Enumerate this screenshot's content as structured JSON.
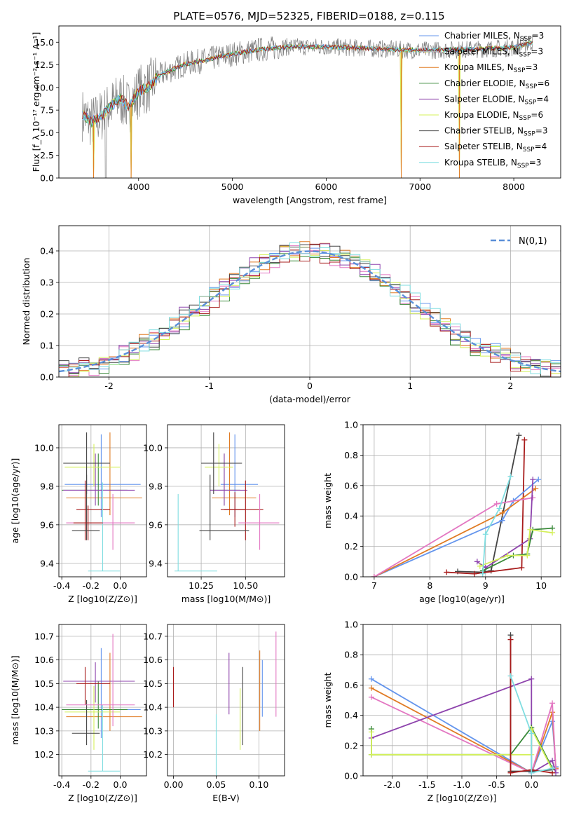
{
  "figure_title": "PLATE=0576, MJD=52325, FIBERID=0188, z=0.115",
  "models": [
    {
      "name": "Chabrier MILES",
      "nssp": "3",
      "color": "#6495ed"
    },
    {
      "name": "Salpeter MILES",
      "nssp": "3",
      "color": "#e8e8e8"
    },
    {
      "name": "Kroupa MILES",
      "nssp": "3",
      "color": "#e07b24"
    },
    {
      "name": "Chabrier ELODIE",
      "nssp": "6",
      "color": "#3a8a3a"
    },
    {
      "name": "Salpeter ELODIE",
      "nssp": "4",
      "color": "#8e44ad"
    },
    {
      "name": "Kroupa ELODIE",
      "nssp": "6",
      "color": "#d4f05a"
    },
    {
      "name": "Chabrier STELIB",
      "nssp": "3",
      "color": "#444444"
    },
    {
      "name": "Salpeter STELIB",
      "nssp": "4",
      "color": "#a81c1c"
    },
    {
      "name": "Kroupa STELIB",
      "nssp": "3",
      "color": "#7fdde0"
    }
  ],
  "colors": {
    "pink": "#e377c2",
    "data_gray": "#808080",
    "gaussian": "#5a8fd8",
    "grid": "#b0b0b0"
  },
  "chart_data": [
    {
      "id": "spectrum",
      "type": "line",
      "xlabel": "wavelength [Angstrom, rest frame]",
      "ylabel": "Flux [f_λ 10⁻¹⁷ erg cm⁻² s⁻¹ A⁻¹]",
      "xlim": [
        3150,
        8500
      ],
      "ylim": [
        0,
        16.8
      ],
      "xticks": [
        4000,
        5000,
        6000,
        7000,
        8000
      ],
      "yticks": [
        0.0,
        2.5,
        5.0,
        7.5,
        10.0,
        12.5,
        15.0
      ],
      "grid": false,
      "legend": "right",
      "x": [
        3400,
        3500,
        3600,
        3700,
        3800,
        3900,
        4000,
        4100,
        4200,
        4300,
        4500,
        4700,
        5000,
        5300,
        5600,
        6000,
        6500,
        7000,
        7500,
        8000,
        8200
      ],
      "model_y": [
        7.0,
        6.2,
        6.8,
        7.9,
        8.8,
        7.8,
        9.6,
        10.0,
        11.2,
        11.7,
        12.6,
        13.0,
        13.7,
        14.2,
        14.5,
        14.5,
        14.3,
        14.1,
        14.2,
        14.4,
        15.0
      ],
      "dropouts": [
        3520,
        3920,
        6800,
        7420
      ]
    },
    {
      "id": "residuals",
      "type": "area",
      "xlabel": "(data-model)/error",
      "ylabel": "Normed distribution",
      "xlim": [
        -2.5,
        2.5
      ],
      "ylim": [
        0,
        0.48
      ],
      "xticks": [
        -2,
        -1,
        0,
        1,
        2
      ],
      "yticks": [
        0.0,
        0.1,
        0.2,
        0.3,
        0.4
      ],
      "grid": true,
      "legend": "top-right",
      "legend_label": "N(0,1)",
      "bin_edges": [
        -2.5,
        -2.4,
        -2.3,
        -2.2,
        -2.1,
        -2.0,
        -1.9,
        -1.8,
        -1.7,
        -1.6,
        -1.5,
        -1.4,
        -1.3,
        -1.2,
        -1.1,
        -1.0,
        -0.9,
        -0.8,
        -0.7,
        -0.6,
        -0.5,
        -0.4,
        -0.3,
        -0.2,
        -0.1,
        0.0,
        0.1,
        0.2,
        0.3,
        0.4,
        0.5,
        0.6,
        0.7,
        0.8,
        0.9,
        1.0,
        1.1,
        1.2,
        1.3,
        1.4,
        1.5,
        1.6,
        1.7,
        1.8,
        1.9,
        2.0,
        2.1,
        2.2,
        2.3,
        2.4,
        2.5
      ],
      "hist_offsets": [
        0.02,
        -0.015,
        0.01,
        -0.025,
        0.03,
        0.0,
        0.015,
        -0.02,
        0.025
      ],
      "gaussian": {
        "mean": 0.0,
        "sigma": 1.0
      }
    },
    {
      "id": "age_vs_Z",
      "type": "scatter",
      "xlabel": "Z [log10(Z/Z⊙)]",
      "ylabel": "age [log10(age/yr)]",
      "xlim": [
        -0.42,
        0.18
      ],
      "ylim": [
        9.33,
        10.12
      ],
      "xticks": [
        -0.4,
        -0.2,
        0.0
      ],
      "yticks": [
        9.4,
        9.6,
        9.8,
        10.0
      ],
      "grid": true,
      "points": [
        {
          "model": 0,
          "x": -0.13,
          "y": 9.81,
          "xerr": [
            0.25,
            0.27
          ],
          "yerr": [
            0.17,
            0.26
          ]
        },
        {
          "model": 2,
          "x": -0.07,
          "y": 9.74,
          "xerr": [
            0.3,
            0.22
          ],
          "yerr": [
            0.09,
            0.34
          ]
        },
        {
          "model": 3,
          "x": -0.15,
          "y": 9.78,
          "xerr": [
            0.25,
            0.2
          ],
          "yerr": [
            0.08,
            0.19
          ]
        },
        {
          "model": 4,
          "x": -0.17,
          "y": 9.78,
          "xerr": [
            0.22,
            0.27
          ],
          "yerr": [
            0.08,
            0.19
          ]
        },
        {
          "model": 5,
          "x": -0.18,
          "y": 9.9,
          "xerr": [
            0.2,
            0.18
          ],
          "yerr": [
            0.1,
            0.12
          ]
        },
        {
          "model": 6,
          "x": -0.23,
          "y": 9.92,
          "xerr": [
            0.16,
            0.16
          ],
          "yerr": [
            0.16,
            0.16
          ]
        },
        {
          "model": 7,
          "x": -0.24,
          "y": 9.68,
          "xerr": [
            0.06,
            0.17
          ],
          "yerr": [
            0.16,
            0.15
          ]
        },
        {
          "model": 6,
          "x": -0.23,
          "y": 9.57,
          "xerr": [
            0.1,
            0.09
          ],
          "yerr": [
            0.05,
            0.29
          ]
        },
        {
          "model": 8,
          "x": -0.12,
          "y": 9.36,
          "xerr": [
            0.1,
            0.12
          ],
          "yerr": [
            0.0,
            0.46
          ]
        },
        {
          "model": 9,
          "x": -0.05,
          "y": 9.61,
          "xerr": [
            0.32,
            0.15
          ],
          "yerr": [
            0.14,
            0.15
          ]
        },
        {
          "model": 7,
          "x": -0.22,
          "y": 9.61,
          "xerr": [
            0.1,
            0.1
          ],
          "yerr": [
            0.09,
            0.09
          ]
        }
      ]
    },
    {
      "id": "age_vs_mass",
      "type": "scatter",
      "xlabel": "mass [log10(M/M⊙)]",
      "ylabel": "",
      "xlim": [
        10.06,
        10.72
      ],
      "ylim": [
        9.33,
        10.12
      ],
      "xticks": [
        10.25,
        10.5
      ],
      "yticks": [
        9.4,
        9.6,
        9.8,
        10.0
      ],
      "grid": true,
      "points": [
        {
          "model": 0,
          "x": 10.44,
          "y": 9.81,
          "xerr": [
            0.08,
            0.13
          ],
          "yerr": [
            0.17,
            0.26
          ]
        },
        {
          "model": 2,
          "x": 10.41,
          "y": 9.74,
          "xerr": [
            0.1,
            0.15
          ],
          "yerr": [
            0.09,
            0.34
          ]
        },
        {
          "model": 3,
          "x": 10.38,
          "y": 9.78,
          "xerr": [
            0.08,
            0.09
          ],
          "yerr": [
            0.08,
            0.19
          ]
        },
        {
          "model": 4,
          "x": 10.38,
          "y": 9.78,
          "xerr": [
            0.08,
            0.13
          ],
          "yerr": [
            0.08,
            0.19
          ]
        },
        {
          "model": 5,
          "x": 10.35,
          "y": 9.9,
          "xerr": [
            0.08,
            0.08
          ],
          "yerr": [
            0.1,
            0.12
          ]
        },
        {
          "model": 6,
          "x": 10.32,
          "y": 9.92,
          "xerr": [
            0.07,
            0.16
          ],
          "yerr": [
            0.16,
            0.16
          ]
        },
        {
          "model": 7,
          "x": 10.5,
          "y": 9.68,
          "xerr": [
            0.12,
            0.1
          ],
          "yerr": [
            0.16,
            0.15
          ]
        },
        {
          "model": 6,
          "x": 10.3,
          "y": 9.57,
          "xerr": [
            0.06,
            0.22
          ],
          "yerr": [
            0.05,
            0.29
          ]
        },
        {
          "model": 8,
          "x": 10.12,
          "y": 9.36,
          "xerr": [
            0.02,
            0.22
          ],
          "yerr": [
            0.0,
            0.4
          ]
        },
        {
          "model": 9,
          "x": 10.58,
          "y": 9.61,
          "xerr": [
            0.12,
            0.11
          ],
          "yerr": [
            0.14,
            0.15
          ]
        },
        {
          "model": 7,
          "x": 10.44,
          "y": 9.68,
          "xerr": [
            0.08,
            0.06
          ],
          "yerr": [
            0.09,
            0.09
          ]
        }
      ]
    },
    {
      "id": "weight_vs_age",
      "type": "line",
      "xlabel": "age [log10(age/yr)]",
      "ylabel": "mass weight",
      "xlim": [
        6.8,
        10.35
      ],
      "ylim": [
        0,
        1.0
      ],
      "xticks": [
        7,
        8,
        9,
        10
      ],
      "yticks": [
        0.0,
        0.2,
        0.4,
        0.6,
        0.8,
        1.0
      ],
      "grid": true,
      "series": [
        {
          "model": 6,
          "x": [
            8.5,
            8.95,
            9.1,
            9.6
          ],
          "y": [
            0.035,
            0.03,
            0.04,
            0.93
          ]
        },
        {
          "model": 7,
          "x": [
            8.3,
            8.8,
            9.65,
            9.7
          ],
          "y": [
            0.03,
            0.02,
            0.06,
            0.9
          ]
        },
        {
          "model": 0,
          "x": [
            7.0,
            9.3,
            9.5,
            9.95
          ],
          "y": [
            0.0,
            0.37,
            0.5,
            0.64
          ]
        },
        {
          "model": 2,
          "x": [
            7.0,
            9.3,
            9.9
          ],
          "y": [
            0.0,
            0.42,
            0.58
          ]
        },
        {
          "model": 9,
          "x": [
            7.0,
            9.2,
            9.85
          ],
          "y": [
            0.0,
            0.48,
            0.52
          ]
        },
        {
          "model": 4,
          "x": [
            8.85,
            9.0,
            9.8,
            9.85
          ],
          "y": [
            0.1,
            0.06,
            0.25,
            0.64
          ]
        },
        {
          "model": 3,
          "x": [
            8.95,
            9.5,
            9.75,
            9.85,
            10.2
          ],
          "y": [
            0.04,
            0.14,
            0.15,
            0.31,
            0.32
          ]
        },
        {
          "model": 5,
          "x": [
            8.9,
            9.4,
            9.75,
            9.8,
            10.2
          ],
          "y": [
            0.07,
            0.14,
            0.14,
            0.31,
            0.29
          ]
        },
        {
          "model": 8,
          "x": [
            8.95,
            9.0,
            9.25,
            9.45
          ],
          "y": [
            0.02,
            0.28,
            0.45,
            0.66
          ]
        }
      ]
    },
    {
      "id": "mass_vs_Z",
      "type": "scatter",
      "xlabel": "Z [log10(Z/Z⊙)]",
      "ylabel": "mass [log10(M/M⊙)]",
      "xlim": [
        -0.42,
        0.18
      ],
      "ylim": [
        10.11,
        10.75
      ],
      "xticks": [
        -0.4,
        -0.2,
        0.0
      ],
      "yticks": [
        10.2,
        10.3,
        10.4,
        10.5,
        10.6,
        10.7
      ],
      "grid": true,
      "points": [
        {
          "model": 0,
          "x": -0.13,
          "y": 10.39,
          "xerr": [
            0.25,
            0.27
          ],
          "yerr": [
            0.12,
            0.26
          ]
        },
        {
          "model": 2,
          "x": -0.07,
          "y": 10.36,
          "xerr": [
            0.3,
            0.22
          ],
          "yerr": [
            0.06,
            0.27
          ]
        },
        {
          "model": 3,
          "x": -0.15,
          "y": 10.39,
          "xerr": [
            0.25,
            0.2
          ],
          "yerr": [
            0.08,
            0.12
          ]
        },
        {
          "model": 4,
          "x": -0.17,
          "y": 10.51,
          "xerr": [
            0.22,
            0.27
          ],
          "yerr": [
            0.09,
            0.08
          ]
        },
        {
          "model": 5,
          "x": -0.18,
          "y": 10.38,
          "xerr": [
            0.2,
            0.18
          ],
          "yerr": [
            0.16,
            0.11
          ]
        },
        {
          "model": 6,
          "x": -0.23,
          "y": 10.29,
          "xerr": [
            0.1,
            0.09
          ],
          "yerr": [
            0.05,
            0.14
          ]
        },
        {
          "model": 7,
          "x": -0.24,
          "y": 10.5,
          "xerr": [
            0.06,
            0.17
          ],
          "yerr": [
            0.09,
            0.07
          ]
        },
        {
          "model": 8,
          "x": -0.12,
          "y": 10.13,
          "xerr": [
            0.1,
            0.12
          ],
          "yerr": [
            0.0,
            0.28
          ]
        },
        {
          "model": 9,
          "x": -0.05,
          "y": 10.41,
          "xerr": [
            0.32,
            0.15
          ],
          "yerr": [
            0.09,
            0.3
          ]
        }
      ]
    },
    {
      "id": "mass_vs_ebv",
      "type": "scatter",
      "xlabel": "E(B-V)",
      "ylabel": "",
      "xlim": [
        -0.007,
        0.13
      ],
      "ylim": [
        10.11,
        10.75
      ],
      "xticks": [
        0.0,
        0.05,
        0.1
      ],
      "yticks": [
        10.2,
        10.3,
        10.4,
        10.5,
        10.6,
        10.7
      ],
      "grid": true,
      "vlines": [
        {
          "model": 7,
          "x": 0.0,
          "ylo": 10.4,
          "yhi": 10.57
        },
        {
          "model": 8,
          "x": 0.05,
          "ylo": 10.11,
          "yhi": 10.37
        },
        {
          "model": 4,
          "x": 0.065,
          "ylo": 10.37,
          "yhi": 10.63
        },
        {
          "model": 5,
          "x": 0.078,
          "ylo": 10.22,
          "yhi": 10.48
        },
        {
          "model": 6,
          "x": 0.081,
          "ylo": 10.24,
          "yhi": 10.57
        },
        {
          "model": 2,
          "x": 0.101,
          "ylo": 10.3,
          "yhi": 10.64
        },
        {
          "model": 0,
          "x": 0.104,
          "ylo": 10.36,
          "yhi": 10.6
        },
        {
          "model": 9,
          "x": 0.12,
          "ylo": 10.36,
          "yhi": 10.72
        }
      ]
    },
    {
      "id": "weight_vs_Z",
      "type": "line",
      "xlabel": "Z [log10(Z/Z⊙)]",
      "ylabel": "mass weight",
      "xlim": [
        -2.42,
        0.42
      ],
      "ylim": [
        0,
        1.0
      ],
      "xticks": [
        -2.0,
        -1.5,
        -1.0,
        -0.5,
        0.0
      ],
      "yticks": [
        0.0,
        0.2,
        0.4,
        0.6,
        0.8,
        1.0
      ],
      "grid": true,
      "series": [
        {
          "model": 0,
          "x": [
            -2.3,
            0.0,
            0.3,
            0.35
          ],
          "y": [
            0.64,
            0.02,
            0.36,
            0.06
          ]
        },
        {
          "model": 2,
          "x": [
            -2.3,
            0.0,
            0.3,
            0.35
          ],
          "y": [
            0.58,
            0.02,
            0.42,
            0.05
          ]
        },
        {
          "model": 9,
          "x": [
            -2.3,
            0.0,
            0.3,
            0.35
          ],
          "y": [
            0.52,
            0.02,
            0.48,
            0.04
          ]
        },
        {
          "model": 4,
          "x": [
            -2.3,
            0.0,
            0.0,
            0.3,
            0.35
          ],
          "y": [
            0.25,
            0.64,
            0.02,
            0.1,
            0.02
          ]
        },
        {
          "model": 3,
          "x": [
            -2.3,
            -2.3,
            -0.3,
            0.0,
            0.3
          ],
          "y": [
            0.31,
            0.14,
            0.14,
            0.32,
            0.05
          ]
        },
        {
          "model": 5,
          "x": [
            -2.3,
            -2.3,
            0.0,
            0.0,
            0.3
          ],
          "y": [
            0.29,
            0.14,
            0.14,
            0.31,
            0.04
          ]
        },
        {
          "model": 6,
          "x": [
            -0.3,
            -0.3,
            0.0,
            0.3
          ],
          "y": [
            0.93,
            0.03,
            0.03,
            0.04
          ]
        },
        {
          "model": 7,
          "x": [
            -0.3,
            -0.3,
            0.0,
            0.3
          ],
          "y": [
            0.9,
            0.02,
            0.04,
            0.02
          ]
        },
        {
          "model": 8,
          "x": [
            -0.3,
            0.0,
            0.0,
            0.3
          ],
          "y": [
            0.66,
            0.28,
            0.02,
            0.05
          ]
        }
      ]
    }
  ]
}
